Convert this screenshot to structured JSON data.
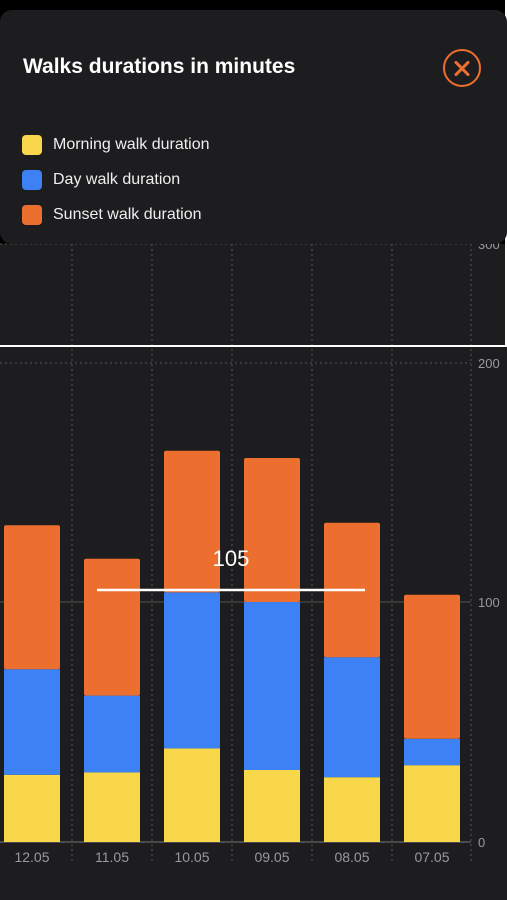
{
  "panel": {
    "title": "Walks durations in minutes",
    "close_icon": "close-circle-icon"
  },
  "legend": [
    {
      "label": "Morning walk duration",
      "color": "#f9d74b"
    },
    {
      "label": "Day walk duration",
      "color": "#3d82f4"
    },
    {
      "label": "Sunset walk duration",
      "color": "#ec6f2f"
    }
  ],
  "chart_data": {
    "type": "bar",
    "stacked": true,
    "categories": [
      "12.05",
      "11.05",
      "10.05",
      "09.05",
      "08.05",
      "07.05"
    ],
    "series": [
      {
        "name": "Morning walk duration",
        "color": "#f9d74b",
        "values": [
          28,
          29,
          39,
          30,
          27,
          32
        ]
      },
      {
        "name": "Day walk duration",
        "color": "#3d82f4",
        "values": [
          44,
          32,
          65,
          70,
          50,
          11
        ]
      },
      {
        "name": "Sunset walk duration",
        "color": "#ec6f2f",
        "values": [
          60,
          57,
          59,
          60,
          56,
          60
        ]
      }
    ],
    "y_ticks": [
      0,
      100,
      200,
      300
    ],
    "ylim": [
      0,
      300
    ],
    "average": {
      "value": 105,
      "label": "105"
    },
    "grid": true
  },
  "colors": {
    "background": "#1d1d1f",
    "accent": "#ec6f2f",
    "grid": "#555555",
    "average_line": "#ffffff"
  }
}
